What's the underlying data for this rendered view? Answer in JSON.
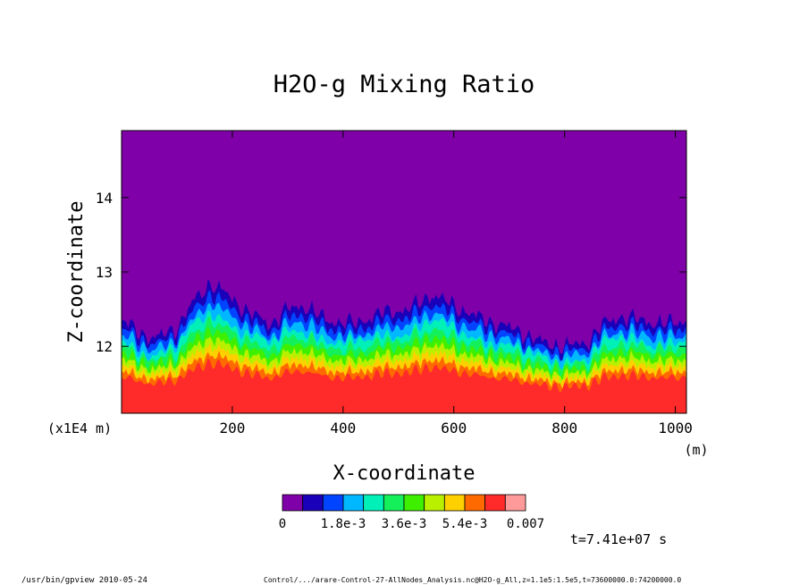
{
  "chart_data": {
    "type": "heatmap",
    "title": "H2O-g Mixing Ratio",
    "xlabel": "X-coordinate",
    "ylabel": "Z-coordinate",
    "x_unit": "(m)",
    "y_unit": "(x1E4 m)",
    "xlim": [
      0,
      1020
    ],
    "ylim": [
      11.1,
      14.9
    ],
    "x_ticks": [
      "200",
      "400",
      "600",
      "800",
      "1000"
    ],
    "y_ticks": [
      "12",
      "13",
      "14"
    ],
    "x_tick_values": [
      200,
      400,
      600,
      800,
      1000
    ],
    "y_tick_values": [
      12,
      13,
      14
    ],
    "colorbar": {
      "colors": [
        "#7f00a8",
        "#1a00b8",
        "#0044ff",
        "#00b8ff",
        "#00f0b8",
        "#14f05a",
        "#3ef000",
        "#b8f000",
        "#ffd000",
        "#ff6a00",
        "#ff2a2a",
        "#ff9a9a"
      ],
      "labels": [
        "0",
        "1.8e-3",
        "3.6e-3",
        "5.4e-3",
        "0.007"
      ]
    },
    "moisture_top_profile": {
      "x": [
        0,
        30,
        60,
        100,
        130,
        160,
        190,
        230,
        270,
        300,
        330,
        370,
        420,
        470,
        520,
        560,
        600,
        640,
        680,
        720,
        760,
        800,
        840,
        870,
        900,
        940,
        980,
        1020
      ],
      "z": [
        12.35,
        12.2,
        12.1,
        12.25,
        12.6,
        12.85,
        12.7,
        12.45,
        12.3,
        12.5,
        12.55,
        12.35,
        12.3,
        12.45,
        12.5,
        12.7,
        12.55,
        12.4,
        12.3,
        12.2,
        12.05,
        12.0,
        12.05,
        12.3,
        12.4,
        12.35,
        12.3,
        12.35
      ]
    },
    "time_label": "t=7.41e+07 s"
  },
  "footer": {
    "program": "/usr/bin/gpview  2010-05-24",
    "source": "Control/.../arare-Control-27-AllNodes_Analysis.nc@H2O-g_All,z=1.1e5:1.5e5,t=73600000.0:74200000.0"
  }
}
